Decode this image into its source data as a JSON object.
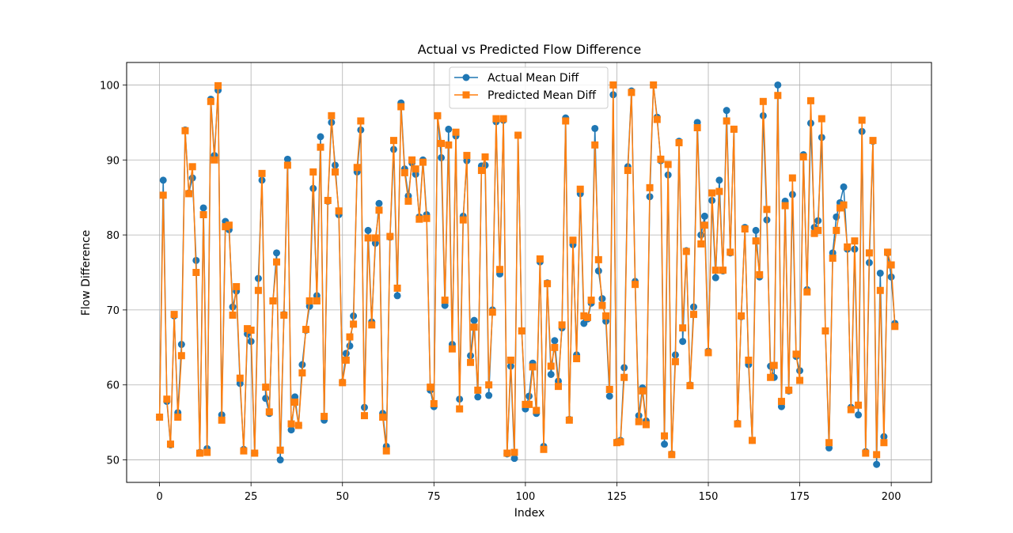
{
  "chart_data": {
    "type": "line",
    "title": "Actual vs Predicted Flow Difference",
    "xlabel": "Index",
    "ylabel": "Flow Difference",
    "xlim": [
      -9,
      211
    ],
    "ylim": [
      47,
      103
    ],
    "xticks": [
      0,
      25,
      50,
      75,
      100,
      125,
      150,
      175,
      200
    ],
    "yticks": [
      50,
      60,
      70,
      80,
      90,
      100
    ],
    "grid": true,
    "legend_position": "top-center",
    "series": [
      {
        "name": "Actual Mean Diff",
        "color": "#1f77b4",
        "marker": "circle",
        "values": [
          55.7,
          87.3,
          57.8,
          52.0,
          69.2,
          56.3,
          65.4,
          94.0,
          85.6,
          87.6,
          76.6,
          51.0,
          83.6,
          51.5,
          98.1,
          90.6,
          99.3,
          56.0,
          81.8,
          80.7,
          70.4,
          72.5,
          60.2,
          51.4,
          66.8,
          65.8,
          50.9,
          74.2,
          87.3,
          58.2,
          56.2,
          71.2,
          77.6,
          50.0,
          69.4,
          90.1,
          54.0,
          58.4,
          54.6,
          62.7,
          67.3,
          70.5,
          86.2,
          71.9,
          93.1,
          55.3,
          84.5,
          95.0,
          89.3,
          82.7,
          60.4,
          64.2,
          65.2,
          69.2,
          88.4,
          94.0,
          57.0,
          80.6,
          68.4,
          78.9,
          84.2,
          56.2,
          51.8,
          79.7,
          91.4,
          71.9,
          97.6,
          88.8,
          85.2,
          89.6,
          88.1,
          82.4,
          90.0,
          82.7,
          59.3,
          57.1,
          95.9,
          90.3,
          70.6,
          94.1,
          65.4,
          93.2,
          58.1,
          82.5,
          89.9,
          63.9,
          68.6,
          58.4,
          89.2,
          89.3,
          58.6,
          70.0,
          95.1,
          74.8,
          95.3,
          50.8,
          62.5,
          50.2,
          93.3,
          67.2,
          56.8,
          58.5,
          62.9,
          56.2,
          76.4,
          51.8,
          73.6,
          61.4,
          65.9,
          60.5,
          67.6,
          95.6,
          55.4,
          78.7,
          64.0,
          85.5,
          68.2,
          68.8,
          70.9,
          94.2,
          75.2,
          71.5,
          68.5,
          58.5,
          98.7,
          52.4,
          52.6,
          62.3,
          89.1,
          99.2,
          73.8,
          55.9,
          59.6,
          55.2,
          85.1,
          100.0,
          95.7,
          89.9,
          52.1,
          88.0,
          50.8,
          64.0,
          92.5,
          65.8,
          77.9,
          60.0,
          70.4,
          95.0,
          80.0,
          82.5,
          64.5,
          84.6,
          74.3,
          87.3,
          75.2,
          96.6,
          77.6,
          94.1,
          54.9,
          69.1,
          81.0,
          62.7,
          52.6,
          80.6,
          74.4,
          95.9,
          82.0,
          62.5,
          61.0,
          100.0,
          57.1,
          84.5,
          59.2,
          85.4,
          63.8,
          61.9,
          90.7,
          72.7,
          94.9,
          81.0,
          81.9,
          93.0,
          67.2,
          51.6,
          77.6,
          82.4,
          84.3,
          86.4,
          78.1,
          57.0,
          78.1,
          56.0,
          93.8,
          51.1,
          76.3,
          92.5,
          49.4,
          74.9,
          53.1,
          77.6,
          74.4,
          68.2
        ]
      },
      {
        "name": "Predicted Mean Diff",
        "color": "#ff7f0e",
        "marker": "square",
        "values": [
          55.7,
          85.3,
          58.1,
          52.1,
          69.4,
          55.7,
          63.9,
          93.9,
          85.5,
          89.1,
          75.0,
          50.9,
          82.7,
          51.0,
          97.8,
          90.0,
          99.9,
          55.3,
          81.1,
          81.3,
          69.3,
          73.1,
          60.9,
          51.2,
          67.5,
          67.3,
          50.9,
          72.6,
          88.2,
          59.7,
          56.4,
          71.2,
          76.4,
          51.3,
          69.3,
          89.3,
          54.8,
          57.7,
          54.6,
          61.6,
          67.4,
          71.2,
          88.4,
          71.2,
          91.7,
          55.8,
          84.6,
          95.9,
          88.4,
          83.2,
          60.3,
          63.3,
          66.4,
          68.1,
          89.0,
          95.2,
          55.9,
          79.6,
          68.0,
          79.6,
          83.3,
          55.7,
          51.2,
          79.8,
          92.6,
          72.9,
          97.1,
          88.3,
          84.5,
          90.0,
          88.8,
          82.1,
          89.7,
          82.2,
          59.7,
          57.5,
          95.9,
          92.2,
          71.3,
          92.0,
          64.8,
          93.7,
          56.8,
          82.0,
          90.6,
          63.0,
          67.7,
          59.3,
          88.6,
          90.4,
          60.0,
          69.7,
          95.5,
          75.4,
          95.5,
          50.9,
          63.3,
          51.0,
          93.3,
          67.2,
          57.4,
          57.4,
          62.4,
          56.6,
          76.8,
          51.4,
          73.5,
          62.5,
          65.0,
          59.8,
          68.0,
          95.2,
          55.3,
          79.3,
          63.5,
          86.1,
          69.2,
          69.0,
          71.3,
          92.0,
          76.7,
          70.6,
          69.2,
          59.4,
          100.0,
          52.3,
          52.4,
          61.0,
          88.6,
          99.0,
          73.4,
          55.1,
          59.2,
          54.7,
          86.3,
          100.0,
          95.4,
          90.1,
          53.2,
          89.4,
          50.7,
          63.1,
          92.3,
          67.6,
          77.8,
          59.9,
          69.4,
          94.3,
          78.8,
          81.3,
          64.3,
          85.6,
          75.3,
          85.8,
          75.3,
          95.2,
          77.7,
          94.1,
          54.8,
          69.2,
          80.8,
          63.3,
          52.6,
          79.2,
          74.7,
          97.8,
          83.4,
          61.0,
          62.6,
          98.6,
          57.8,
          83.9,
          59.3,
          87.6,
          64.1,
          60.6,
          90.4,
          72.4,
          97.9,
          80.2,
          80.6,
          95.5,
          67.2,
          52.3,
          76.9,
          80.6,
          83.6,
          84.0,
          78.4,
          56.7,
          79.2,
          57.3,
          95.3,
          50.9,
          77.6,
          92.6,
          50.7,
          72.6,
          52.3,
          77.7,
          76.0,
          67.8
        ]
      }
    ]
  }
}
